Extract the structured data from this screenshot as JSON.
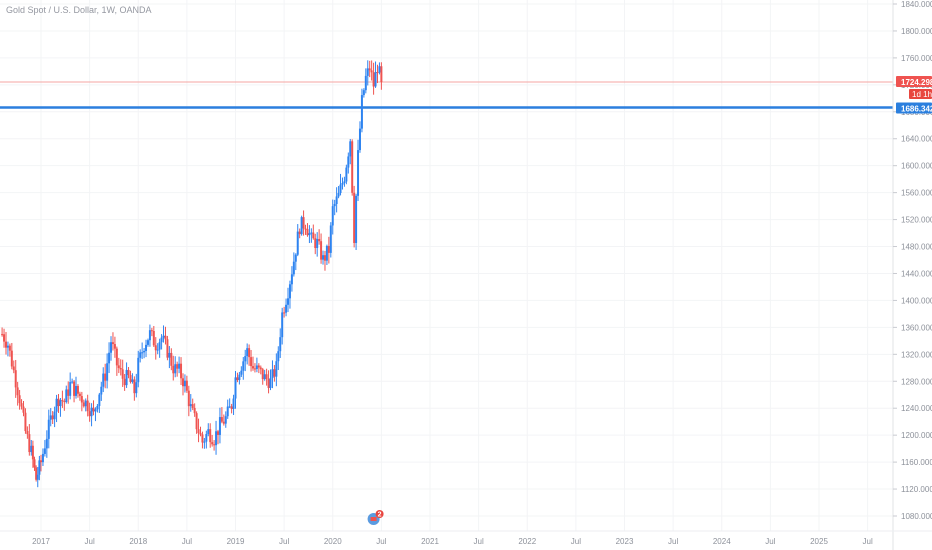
{
  "header": {
    "title": "Gold Spot / U.S. Dollar, 1W, OANDA"
  },
  "colors": {
    "up": "#2d83f0",
    "down": "#ef5350",
    "support_line": "#2b7fde",
    "price_line": "#f4a6a3",
    "axis_text": "#8d919a",
    "tag_current": "#ef5350",
    "tag_countdown": "#e8463f",
    "tag_support": "#2b7fde"
  },
  "chart_data": {
    "type": "candlestick",
    "title": "Gold Spot / U.S. Dollar, 1W, OANDA",
    "ylim": [
      1060,
      1850
    ],
    "y_ticks": [
      1080,
      1120,
      1160,
      1200,
      1240,
      1280,
      1320,
      1360,
      1400,
      1440,
      1480,
      1520,
      1560,
      1600,
      1640,
      1680,
      1720,
      1760,
      1800,
      1840
    ],
    "y_tick_labels": [
      "1080.000",
      "1120.000",
      "1160.000",
      "1200.000",
      "1240.000",
      "1280.000",
      "1320.000",
      "1360.000",
      "1400.000",
      "1440.000",
      "1480.000",
      "1520.000",
      "1560.000",
      "1600.000",
      "1640.000",
      "1680.000",
      "1720.000",
      "1760.000",
      "1800.000",
      "1840.000"
    ],
    "x_ticks": [
      {
        "label": "2017",
        "year": 2017.0
      },
      {
        "label": "Jul",
        "year": 2017.5
      },
      {
        "label": "2018",
        "year": 2018.0
      },
      {
        "label": "Jul",
        "year": 2018.5
      },
      {
        "label": "2019",
        "year": 2019.0
      },
      {
        "label": "Jul",
        "year": 2019.5
      },
      {
        "label": "2020",
        "year": 2020.0
      },
      {
        "label": "Jul",
        "year": 2020.5
      },
      {
        "label": "2021",
        "year": 2021.0
      },
      {
        "label": "Jul",
        "year": 2021.5
      },
      {
        "label": "2022",
        "year": 2022.0
      },
      {
        "label": "Jul",
        "year": 2022.5
      },
      {
        "label": "2023",
        "year": 2023.0
      },
      {
        "label": "Jul",
        "year": 2023.5
      },
      {
        "label": "2024",
        "year": 2024.0
      },
      {
        "label": "Jul",
        "year": 2024.5
      },
      {
        "label": "2025",
        "year": 2025.0
      },
      {
        "label": "Jul",
        "year": 2025.5
      }
    ],
    "xlim": [
      2016.6,
      2025.75
    ],
    "support_level": 1686.342,
    "support_label": "1686.342",
    "current_price": 1724.298,
    "current_price_label": "1724.298",
    "countdown_label": "1d 1h",
    "event_badge": "2",
    "closes": [
      [
        2016.6,
        1350
      ],
      [
        2016.66,
        1335
      ],
      [
        2016.72,
        1295
      ],
      [
        2016.78,
        1255
      ],
      [
        2016.84,
        1205
      ],
      [
        2016.9,
        1175
      ],
      [
        2016.95,
        1135
      ],
      [
        2017.0,
        1160
      ],
      [
        2017.06,
        1200
      ],
      [
        2017.12,
        1235
      ],
      [
        2017.18,
        1255
      ],
      [
        2017.24,
        1250
      ],
      [
        2017.3,
        1275
      ],
      [
        2017.36,
        1265
      ],
      [
        2017.42,
        1255
      ],
      [
        2017.48,
        1245
      ],
      [
        2017.54,
        1230
      ],
      [
        2017.6,
        1265
      ],
      [
        2017.66,
        1290
      ],
      [
        2017.72,
        1340
      ],
      [
        2017.78,
        1305
      ],
      [
        2017.84,
        1285
      ],
      [
        2017.9,
        1285
      ],
      [
        2017.96,
        1265
      ],
      [
        2018.0,
        1305
      ],
      [
        2018.06,
        1335
      ],
      [
        2018.12,
        1350
      ],
      [
        2018.18,
        1335
      ],
      [
        2018.24,
        1345
      ],
      [
        2018.3,
        1325
      ],
      [
        2018.36,
        1300
      ],
      [
        2018.42,
        1295
      ],
      [
        2018.48,
        1275
      ],
      [
        2018.54,
        1240
      ],
      [
        2018.6,
        1215
      ],
      [
        2018.66,
        1190
      ],
      [
        2018.72,
        1205
      ],
      [
        2018.78,
        1195
      ],
      [
        2018.84,
        1215
      ],
      [
        2018.9,
        1225
      ],
      [
        2018.96,
        1245
      ],
      [
        2019.0,
        1285
      ],
      [
        2019.06,
        1305
      ],
      [
        2019.12,
        1325
      ],
      [
        2019.18,
        1300
      ],
      [
        2019.24,
        1295
      ],
      [
        2019.3,
        1285
      ],
      [
        2019.36,
        1280
      ],
      [
        2019.42,
        1300
      ],
      [
        2019.48,
        1380
      ],
      [
        2019.54,
        1415
      ],
      [
        2019.6,
        1460
      ],
      [
        2019.66,
        1510
      ],
      [
        2019.72,
        1515
      ],
      [
        2019.78,
        1490
      ],
      [
        2019.84,
        1485
      ],
      [
        2019.9,
        1460
      ],
      [
        2019.96,
        1475
      ],
      [
        2020.0,
        1535
      ],
      [
        2020.06,
        1555
      ],
      [
        2020.12,
        1585
      ],
      [
        2020.18,
        1640
      ],
      [
        2020.22,
        1495
      ],
      [
        2020.26,
        1615
      ],
      [
        2020.3,
        1695
      ],
      [
        2020.34,
        1730
      ],
      [
        2020.38,
        1745
      ],
      [
        2020.42,
        1720
      ],
      [
        2020.46,
        1748
      ],
      [
        2020.5,
        1724
      ]
    ]
  }
}
